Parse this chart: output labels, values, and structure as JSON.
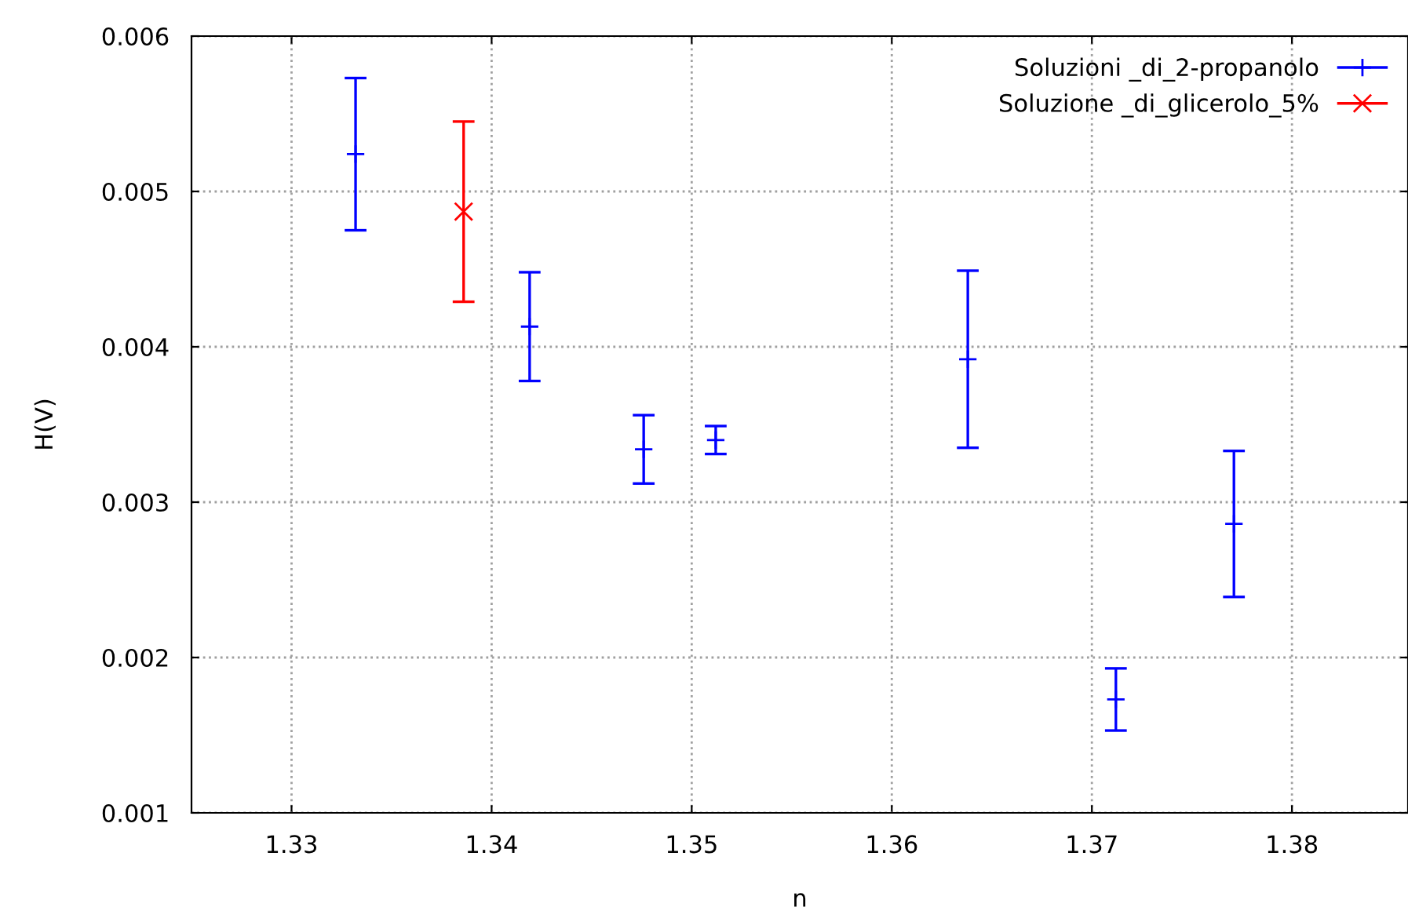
{
  "chart_data": {
    "type": "scatter",
    "xlabel": "n",
    "ylabel": "H(V)",
    "xlim": [
      1.325,
      1.3858
    ],
    "xticks": [
      {
        "value": 1.33,
        "label": "1.33"
      },
      {
        "value": 1.34,
        "label": "1.34"
      },
      {
        "value": 1.35,
        "label": "1.35"
      },
      {
        "value": 1.36,
        "label": "1.36"
      },
      {
        "value": 1.37,
        "label": "1.37"
      },
      {
        "value": 1.38,
        "label": "1.38"
      }
    ],
    "ylim": [
      0.001,
      0.006
    ],
    "yticks": [
      {
        "value": 0.001,
        "label": "0.001"
      },
      {
        "value": 0.002,
        "label": "0.002"
      },
      {
        "value": 0.003,
        "label": "0.003"
      },
      {
        "value": 0.004,
        "label": "0.004"
      },
      {
        "value": 0.005,
        "label": "0.005"
      },
      {
        "value": 0.006,
        "label": "0.006"
      }
    ],
    "grid": true,
    "legend": "top right",
    "series": [
      {
        "name": "Soluzioni _di_2-propanolo",
        "color": "#0000ff",
        "marker": "plus",
        "x": [
          1.3332,
          1.3419,
          1.3476,
          1.3512,
          1.3638,
          1.3712,
          1.3771
        ],
        "values": [
          0.00524,
          0.00413,
          0.00334,
          0.0034,
          0.00392,
          0.00173,
          0.00286
        ],
        "errors": [
          0.00049,
          0.00035,
          0.00022,
          9e-05,
          0.00057,
          0.0002,
          0.00047
        ]
      },
      {
        "name": "Soluzione _di_glicerolo_5%",
        "color": "#ff0000",
        "marker": "cross",
        "x": [
          1.3386
        ],
        "values": [
          0.00487
        ],
        "errors": [
          0.00058
        ]
      }
    ]
  }
}
